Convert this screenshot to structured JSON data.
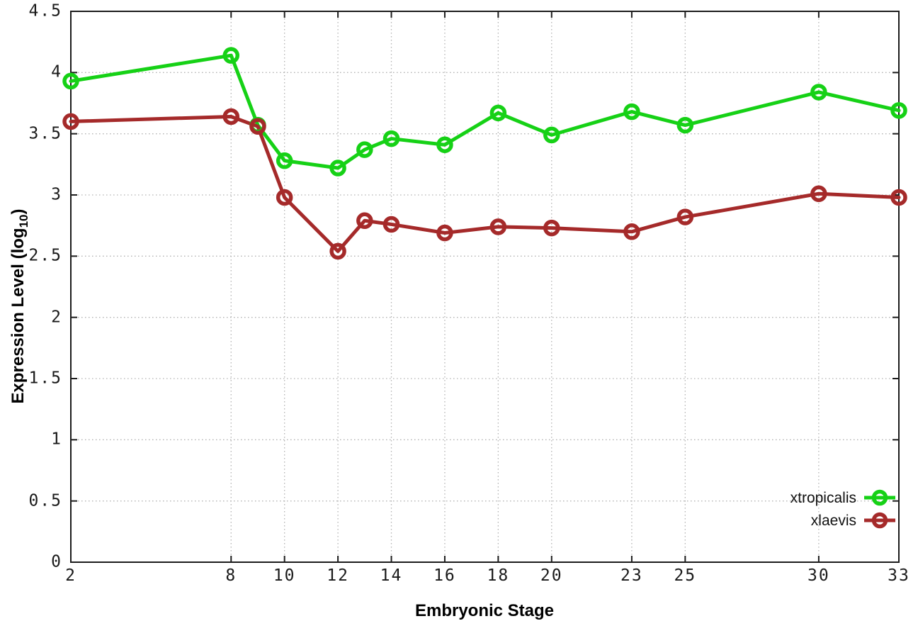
{
  "chart_data": {
    "type": "line",
    "title": "",
    "xlabel": "Embryonic Stage",
    "ylabel": "Expression Level (log10)",
    "ylabel_parts": {
      "main": "Expression Level (log",
      "sub": "10",
      "end": ")"
    },
    "xlim": [
      2,
      33
    ],
    "ylim": [
      0,
      4.5
    ],
    "grid": "dotted",
    "legend_position": "inside-bottom-right",
    "x": [
      2,
      8,
      9,
      10,
      12,
      13,
      14,
      16,
      18,
      20,
      23,
      25,
      30,
      33
    ],
    "xtick_values": [
      2,
      8,
      10,
      12,
      14,
      16,
      18,
      20,
      23,
      25,
      30,
      33
    ],
    "xtick_labels": [
      "2",
      "8",
      "10",
      "12",
      "14",
      "16",
      "18",
      "20",
      "23",
      "25",
      "30",
      "33"
    ],
    "ytick_values": [
      0,
      0.5,
      1,
      1.5,
      2,
      2.5,
      3,
      3.5,
      4,
      4.5
    ],
    "ytick_labels": [
      "0",
      "0.5",
      "1",
      "1.5",
      "2",
      "2.5",
      "3",
      "3.5",
      "4",
      "4.5"
    ],
    "series": [
      {
        "name": "xtropicalis",
        "color": "#16d116",
        "marker": "open-circle",
        "values": [
          3.93,
          4.14,
          3.57,
          3.28,
          3.22,
          3.37,
          3.46,
          3.41,
          3.67,
          3.49,
          3.68,
          3.57,
          3.84,
          3.69
        ]
      },
      {
        "name": "xlaevis",
        "color": "#a52a2a",
        "marker": "open-circle",
        "values": [
          3.6,
          3.64,
          3.56,
          2.98,
          2.54,
          2.79,
          2.76,
          2.69,
          2.74,
          2.73,
          2.7,
          2.82,
          3.01,
          2.98
        ]
      }
    ]
  },
  "styles": {
    "background": "#ffffff",
    "border_color": "#1c1c1c",
    "grid_color": "#b2b2b2",
    "tick_color": "#1c1c1c",
    "text_color": "#111111"
  }
}
